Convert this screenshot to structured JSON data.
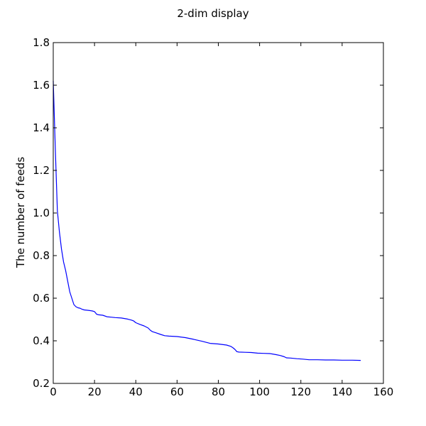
{
  "chart_data": {
    "type": "line",
    "title": "2-dim display",
    "xlabel": "",
    "ylabel": "The number of feeds",
    "xlim": [
      0,
      160
    ],
    "ylim": [
      0.2,
      1.8
    ],
    "xticks": [
      0,
      20,
      40,
      60,
      80,
      100,
      120,
      140,
      160
    ],
    "yticks": [
      0.2,
      0.4,
      0.6,
      0.8,
      1.0,
      1.2,
      1.4,
      1.6,
      1.8
    ],
    "xtick_labels": [
      "0",
      "20",
      "40",
      "60",
      "80",
      "100",
      "120",
      "140",
      "160"
    ],
    "ytick_labels": [
      "0.2",
      "0.4",
      "0.6",
      "0.8",
      "1.0",
      "1.2",
      "1.4",
      "1.6",
      "1.8"
    ],
    "grid": false,
    "series": [
      {
        "color": "#0000ff",
        "points": [
          [
            0,
            1.62
          ],
          [
            1,
            1.3
          ],
          [
            2,
            1.01
          ],
          [
            3,
            0.91
          ],
          [
            4,
            0.83
          ],
          [
            5,
            0.77
          ],
          [
            6,
            0.73
          ],
          [
            7,
            0.68
          ],
          [
            8,
            0.63
          ],
          [
            9,
            0.6
          ],
          [
            10,
            0.57
          ],
          [
            11,
            0.56
          ],
          [
            12,
            0.555
          ],
          [
            13,
            0.553
          ],
          [
            14,
            0.548
          ],
          [
            15,
            0.545
          ],
          [
            17,
            0.543
          ],
          [
            19,
            0.54
          ],
          [
            20,
            0.537
          ],
          [
            21,
            0.525
          ],
          [
            22,
            0.522
          ],
          [
            24,
            0.52
          ],
          [
            26,
            0.513
          ],
          [
            28,
            0.511
          ],
          [
            30,
            0.509
          ],
          [
            33,
            0.507
          ],
          [
            36,
            0.502
          ],
          [
            38,
            0.497
          ],
          [
            39,
            0.493
          ],
          [
            40,
            0.485
          ],
          [
            42,
            0.477
          ],
          [
            44,
            0.47
          ],
          [
            46,
            0.46
          ],
          [
            47,
            0.45
          ],
          [
            48,
            0.443
          ],
          [
            50,
            0.437
          ],
          [
            52,
            0.43
          ],
          [
            54,
            0.424
          ],
          [
            56,
            0.422
          ],
          [
            60,
            0.42
          ],
          [
            64,
            0.415
          ],
          [
            68,
            0.407
          ],
          [
            72,
            0.398
          ],
          [
            74,
            0.393
          ],
          [
            76,
            0.388
          ],
          [
            80,
            0.385
          ],
          [
            84,
            0.38
          ],
          [
            86,
            0.374
          ],
          [
            87,
            0.368
          ],
          [
            88,
            0.36
          ],
          [
            89,
            0.349
          ],
          [
            90,
            0.347
          ],
          [
            93,
            0.346
          ],
          [
            96,
            0.345
          ],
          [
            99,
            0.342
          ],
          [
            102,
            0.341
          ],
          [
            105,
            0.34
          ],
          [
            108,
            0.335
          ],
          [
            110,
            0.331
          ],
          [
            112,
            0.325
          ],
          [
            113,
            0.32
          ],
          [
            115,
            0.319
          ],
          [
            118,
            0.316
          ],
          [
            121,
            0.314
          ],
          [
            124,
            0.311
          ],
          [
            128,
            0.311
          ],
          [
            132,
            0.31
          ],
          [
            136,
            0.31
          ],
          [
            140,
            0.309
          ],
          [
            145,
            0.309
          ],
          [
            149,
            0.308
          ]
        ]
      }
    ]
  }
}
